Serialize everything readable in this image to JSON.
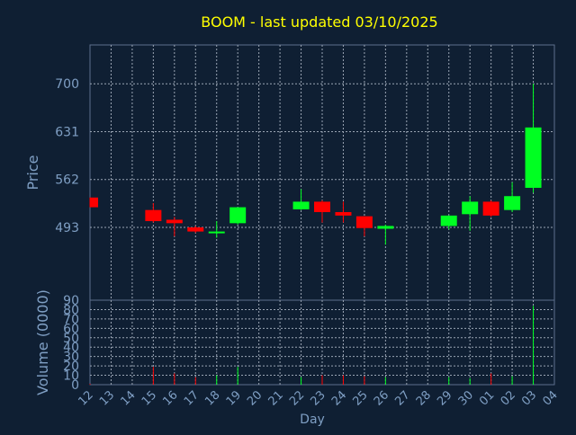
{
  "title": "BOOM - last updated 03/10/2025",
  "colors": {
    "background": "#0f1f33",
    "title": "#ffff00",
    "axis_text": "#7f9fc4",
    "frame": "#5d6f8c",
    "grid": "#9aa5b4",
    "up": "#00ff22",
    "down": "#ff0000"
  },
  "chart_data": [
    {
      "type": "candlestick",
      "ylabel": "Price",
      "xlabel": "",
      "ylim": [
        388,
        756
      ],
      "yticks": [
        493,
        562,
        631,
        700
      ],
      "grid": true,
      "categories": [
        "12",
        "13",
        "14",
        "15",
        "16",
        "17",
        "18",
        "19",
        "20",
        "21",
        "22",
        "23",
        "24",
        "25",
        "26",
        "27",
        "28",
        "29",
        "30",
        "01",
        "02",
        "03",
        "04"
      ],
      "candles": [
        {
          "day": "12",
          "open": 536,
          "close": 522,
          "high": 536,
          "low": 522
        },
        {
          "day": "15",
          "open": 518,
          "close": 502,
          "high": 528,
          "low": 500
        },
        {
          "day": "16",
          "open": 504,
          "close": 499,
          "high": 508,
          "low": 480
        },
        {
          "day": "17",
          "open": 493,
          "close": 487,
          "high": 495,
          "low": 485
        },
        {
          "day": "18",
          "open": 485,
          "close": 487,
          "high": 502,
          "low": 478
        },
        {
          "day": "19",
          "open": 499,
          "close": 522,
          "high": 522,
          "low": 497
        },
        {
          "day": "22",
          "open": 519,
          "close": 530,
          "high": 548,
          "low": 518
        },
        {
          "day": "23",
          "open": 530,
          "close": 515,
          "high": 532,
          "low": 500
        },
        {
          "day": "24",
          "open": 515,
          "close": 510,
          "high": 530,
          "low": 500
        },
        {
          "day": "25",
          "open": 509,
          "close": 492,
          "high": 509,
          "low": 480
        },
        {
          "day": "26",
          "open": 491,
          "close": 495,
          "high": 497,
          "low": 468
        },
        {
          "day": "29",
          "open": 495,
          "close": 510,
          "high": 510,
          "low": 490
        },
        {
          "day": "30",
          "open": 512,
          "close": 530,
          "high": 538,
          "low": 488
        },
        {
          "day": "01",
          "open": 530,
          "close": 510,
          "high": 532,
          "low": 508
        },
        {
          "day": "02",
          "open": 518,
          "close": 538,
          "high": 558,
          "low": 515
        },
        {
          "day": "03",
          "open": 550,
          "close": 637,
          "high": 700,
          "low": 543
        }
      ]
    },
    {
      "type": "bar",
      "ylabel": "Volume (0000)",
      "xlabel": "Day",
      "ylim": [
        0,
        90
      ],
      "yticks": [
        0,
        10,
        20,
        30,
        40,
        50,
        60,
        70,
        80,
        90
      ],
      "grid": true,
      "categories": [
        "12",
        "13",
        "14",
        "15",
        "16",
        "17",
        "18",
        "19",
        "20",
        "21",
        "22",
        "23",
        "24",
        "25",
        "26",
        "27",
        "28",
        "29",
        "30",
        "01",
        "02",
        "03",
        "04"
      ],
      "volumes": [
        {
          "day": "12",
          "value": 1,
          "direction": "down"
        },
        {
          "day": "15",
          "value": 19,
          "direction": "down"
        },
        {
          "day": "16",
          "value": 12,
          "direction": "down"
        },
        {
          "day": "17",
          "value": 8,
          "direction": "down"
        },
        {
          "day": "18",
          "value": 10,
          "direction": "up"
        },
        {
          "day": "19",
          "value": 19,
          "direction": "up"
        },
        {
          "day": "22",
          "value": 8,
          "direction": "up"
        },
        {
          "day": "23",
          "value": 10,
          "direction": "down"
        },
        {
          "day": "24",
          "value": 10,
          "direction": "down"
        },
        {
          "day": "25",
          "value": 9,
          "direction": "down"
        },
        {
          "day": "26",
          "value": 8,
          "direction": "up"
        },
        {
          "day": "29",
          "value": 8,
          "direction": "up"
        },
        {
          "day": "30",
          "value": 7,
          "direction": "up"
        },
        {
          "day": "01",
          "value": 12,
          "direction": "down"
        },
        {
          "day": "02",
          "value": 9,
          "direction": "up"
        },
        {
          "day": "03",
          "value": 84,
          "direction": "up"
        }
      ]
    }
  ]
}
